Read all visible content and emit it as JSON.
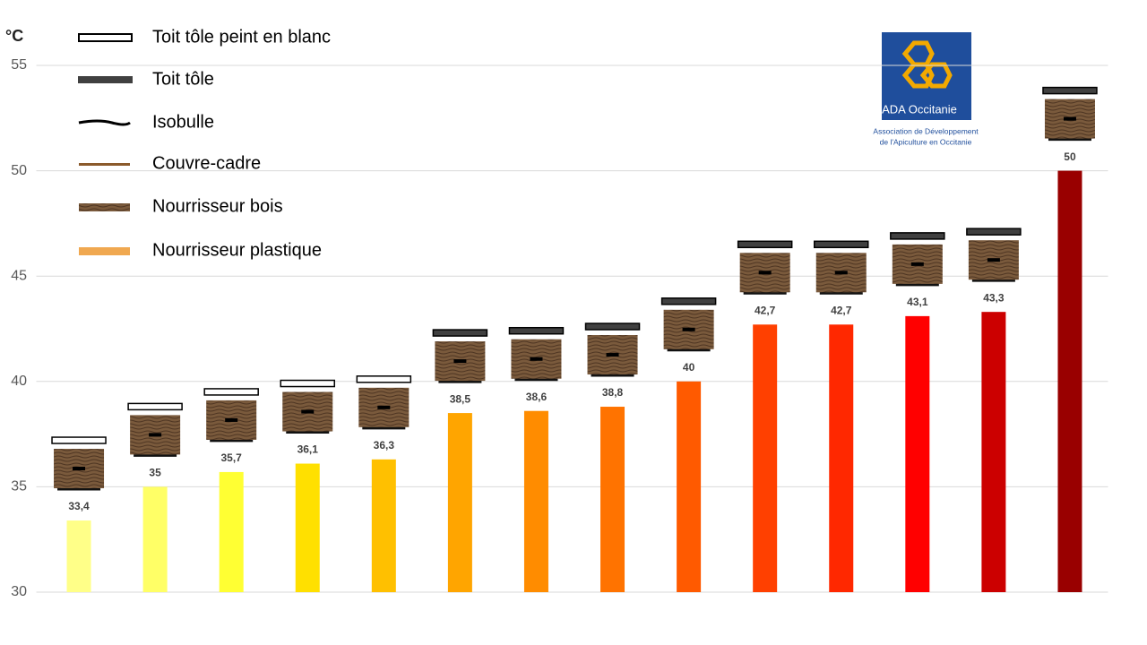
{
  "chart_data": {
    "type": "bar",
    "y_label": "°C",
    "categories": [
      null,
      null,
      null,
      null,
      null,
      null,
      null,
      null,
      null,
      null,
      null,
      null,
      null,
      null
    ],
    "values": [
      33.4,
      35,
      35.7,
      36.1,
      36.3,
      38.5,
      38.6,
      38.8,
      40,
      42.7,
      42.7,
      43.1,
      43.3,
      50
    ],
    "value_labels": [
      "33,4",
      "35",
      "35,7",
      "36,1",
      "36,3",
      "38,5",
      "38,6",
      "38,8",
      "40",
      "42,7",
      "42,7",
      "43,1",
      "43,3",
      "50"
    ],
    "colors": [
      "#FFFF88",
      "#FFFF66",
      "#FFFF33",
      "#FFE000",
      "#FFC000",
      "#FFA500",
      "#FF8C00",
      "#FF7300",
      "#FF5A00",
      "#FF4000",
      "#FF2800",
      "#FF0000",
      "#CC0000",
      "#990000"
    ],
    "ylim": [
      30,
      55
    ],
    "yticks": [
      30,
      35,
      40,
      45,
      50,
      55
    ],
    "grid": true,
    "legend_items": [
      "Toit tôle peint en blanc",
      "Toit tôle",
      "Isobulle",
      "Couvre-cadre",
      "Nourrisseur bois",
      "Nourrisseur plastique"
    ]
  },
  "logo": {
    "name": "ADA Occitanie",
    "line1": "Association de Développement",
    "line2": "de l'Apiculture en Occitanie"
  }
}
